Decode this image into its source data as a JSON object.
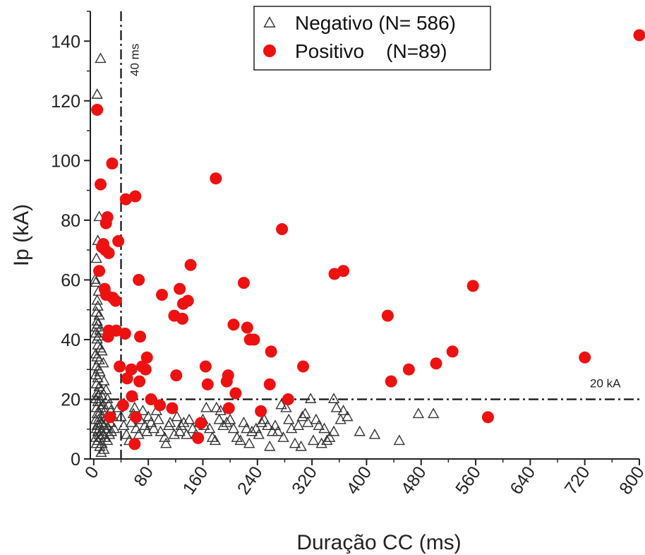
{
  "chart_data": {
    "type": "scatter",
    "xlabel": "Duração CC (ms)",
    "ylabel": "Ip (kA)",
    "xlim": [
      -5,
      800
    ],
    "ylim": [
      0,
      150
    ],
    "xticks": [
      0,
      80,
      160,
      240,
      320,
      400,
      480,
      560,
      640,
      720,
      800
    ],
    "yticks": [
      0,
      20,
      40,
      60,
      80,
      100,
      120,
      140
    ],
    "legend_position": "top-center",
    "reference_lines": [
      {
        "orientation": "vertical",
        "value": 40,
        "label": "40 ms"
      },
      {
        "orientation": "horizontal",
        "value": 20,
        "label": "20 kA"
      }
    ],
    "series": [
      {
        "name": "Negativo",
        "legend_label": "Negativo (N= 586)",
        "marker": "open-triangle",
        "color": "#333333",
        "points": [
          [
            10,
            134
          ],
          [
            5,
            122
          ],
          [
            8,
            81
          ],
          [
            6,
            73
          ],
          [
            4,
            67
          ],
          [
            2,
            60
          ],
          [
            3,
            59
          ],
          [
            7,
            56
          ],
          [
            5,
            53
          ],
          [
            6,
            51
          ],
          [
            4,
            49
          ],
          [
            8,
            48
          ],
          [
            5,
            46
          ],
          [
            6,
            45
          ],
          [
            4,
            44
          ],
          [
            9,
            43
          ],
          [
            3,
            42
          ],
          [
            7,
            41
          ],
          [
            5,
            40
          ],
          [
            6,
            38
          ],
          [
            10,
            37
          ],
          [
            12,
            36
          ],
          [
            3,
            35
          ],
          [
            5,
            34
          ],
          [
            8,
            33
          ],
          [
            14,
            32
          ],
          [
            4,
            31
          ],
          [
            7,
            30
          ],
          [
            9,
            29
          ],
          [
            3,
            28
          ],
          [
            6,
            27
          ],
          [
            15,
            26
          ],
          [
            4,
            25
          ],
          [
            8,
            24
          ],
          [
            11,
            23
          ],
          [
            18,
            23
          ],
          [
            5,
            22
          ],
          [
            7,
            21
          ],
          [
            12,
            21
          ],
          [
            20,
            20
          ],
          [
            3,
            20
          ],
          [
            6,
            19
          ],
          [
            9,
            19
          ],
          [
            14,
            18
          ],
          [
            22,
            18
          ],
          [
            4,
            17
          ],
          [
            10,
            17
          ],
          [
            16,
            16
          ],
          [
            25,
            16
          ],
          [
            5,
            15
          ],
          [
            8,
            15
          ],
          [
            13,
            14
          ],
          [
            19,
            14
          ],
          [
            28,
            14
          ],
          [
            3,
            13
          ],
          [
            7,
            13
          ],
          [
            11,
            12
          ],
          [
            17,
            12
          ],
          [
            24,
            12
          ],
          [
            5,
            11
          ],
          [
            9,
            11
          ],
          [
            15,
            11
          ],
          [
            21,
            10
          ],
          [
            30,
            10
          ],
          [
            4,
            10
          ],
          [
            6,
            9
          ],
          [
            12,
            9
          ],
          [
            18,
            9
          ],
          [
            26,
            9
          ],
          [
            8,
            8
          ],
          [
            14,
            8
          ],
          [
            23,
            8
          ],
          [
            3,
            7
          ],
          [
            10,
            7
          ],
          [
            16,
            7
          ],
          [
            20,
            6
          ],
          [
            6,
            6
          ],
          [
            12,
            5
          ],
          [
            4,
            5
          ],
          [
            9,
            4
          ],
          [
            15,
            3
          ],
          [
            11,
            2
          ],
          [
            36,
            17
          ],
          [
            40,
            14
          ],
          [
            44,
            11
          ],
          [
            48,
            8
          ],
          [
            52,
            6
          ],
          [
            55,
            12
          ],
          [
            58,
            15
          ],
          [
            60,
            17
          ],
          [
            62,
            10
          ],
          [
            66,
            8
          ],
          [
            68,
            13
          ],
          [
            72,
            16
          ],
          [
            75,
            11
          ],
          [
            78,
            9
          ],
          [
            80,
            14
          ],
          [
            84,
            12
          ],
          [
            88,
            10
          ],
          [
            92,
            16
          ],
          [
            95,
            13
          ],
          [
            98,
            9
          ],
          [
            104,
            7
          ],
          [
            106,
            5
          ],
          [
            110,
            11
          ],
          [
            112,
            12
          ],
          [
            118,
            8
          ],
          [
            122,
            14
          ],
          [
            126,
            9
          ],
          [
            128,
            11
          ],
          [
            132,
            12
          ],
          [
            136,
            8
          ],
          [
            140,
            13
          ],
          [
            145,
            10
          ],
          [
            150,
            8
          ],
          [
            155,
            12
          ],
          [
            160,
            13
          ],
          [
            162,
            11
          ],
          [
            165,
            17
          ],
          [
            170,
            10
          ],
          [
            174,
            7
          ],
          [
            178,
            6
          ],
          [
            180,
            17
          ],
          [
            184,
            13
          ],
          [
            186,
            16
          ],
          [
            190,
            11
          ],
          [
            195,
            12
          ],
          [
            200,
            13
          ],
          [
            205,
            10
          ],
          [
            210,
            7
          ],
          [
            215,
            6
          ],
          [
            220,
            12
          ],
          [
            224,
            10
          ],
          [
            228,
            5
          ],
          [
            232,
            9
          ],
          [
            238,
            10
          ],
          [
            242,
            8
          ],
          [
            246,
            12
          ],
          [
            250,
            13
          ],
          [
            255,
            11
          ],
          [
            258,
            4
          ],
          [
            262,
            9
          ],
          [
            266,
            11
          ],
          [
            270,
            9
          ],
          [
            275,
            18
          ],
          [
            278,
            7
          ],
          [
            282,
            17
          ],
          [
            286,
            13
          ],
          [
            290,
            10
          ],
          [
            295,
            5
          ],
          [
            300,
            11
          ],
          [
            304,
            4
          ],
          [
            306,
            14
          ],
          [
            310,
            15
          ],
          [
            314,
            12
          ],
          [
            318,
            20
          ],
          [
            322,
            6
          ],
          [
            326,
            13
          ],
          [
            330,
            11
          ],
          [
            334,
            5
          ],
          [
            338,
            10
          ],
          [
            342,
            6
          ],
          [
            346,
            7
          ],
          [
            352,
            9
          ],
          [
            352,
            20
          ],
          [
            356,
            17
          ],
          [
            362,
            13
          ],
          [
            366,
            16
          ],
          [
            372,
            14
          ],
          [
            390,
            9
          ],
          [
            412,
            8
          ],
          [
            448,
            6
          ],
          [
            476,
            15
          ],
          [
            498,
            15
          ]
        ]
      },
      {
        "name": "Positivo",
        "legend_label": "Positivo    (N=89)",
        "marker": "filled-circle",
        "color": "#ee1111",
        "points": [
          [
            5,
            117
          ],
          [
            8,
            63
          ],
          [
            10,
            92
          ],
          [
            12,
            71
          ],
          [
            14,
            72
          ],
          [
            16,
            57
          ],
          [
            17,
            70
          ],
          [
            18,
            55
          ],
          [
            18,
            79
          ],
          [
            20,
            81
          ],
          [
            21,
            41
          ],
          [
            22,
            43
          ],
          [
            22,
            69
          ],
          [
            24,
            14
          ],
          [
            27,
            99
          ],
          [
            28,
            54
          ],
          [
            32,
            53
          ],
          [
            33,
            43
          ],
          [
            36,
            73
          ],
          [
            38,
            31
          ],
          [
            43,
            18
          ],
          [
            46,
            42
          ],
          [
            47,
            87
          ],
          [
            49,
            27
          ],
          [
            55,
            30
          ],
          [
            56,
            21
          ],
          [
            60,
            5
          ],
          [
            61,
            88
          ],
          [
            62,
            14
          ],
          [
            66,
            60
          ],
          [
            67,
            26
          ],
          [
            68,
            41
          ],
          [
            71,
            31
          ],
          [
            76,
            30
          ],
          [
            78,
            34
          ],
          [
            84,
            20
          ],
          [
            97,
            18
          ],
          [
            100,
            55
          ],
          [
            115,
            17
          ],
          [
            118,
            48
          ],
          [
            121,
            28
          ],
          [
            126,
            57
          ],
          [
            130,
            47
          ],
          [
            131,
            52
          ],
          [
            138,
            53
          ],
          [
            142,
            65
          ],
          [
            153,
            7
          ],
          [
            157,
            12
          ],
          [
            164,
            31
          ],
          [
            167,
            25
          ],
          [
            179,
            94
          ],
          [
            195,
            26
          ],
          [
            197,
            28
          ],
          [
            198,
            17
          ],
          [
            205,
            45
          ],
          [
            208,
            22
          ],
          [
            220,
            59
          ],
          [
            225,
            44
          ],
          [
            229,
            40
          ],
          [
            235,
            40
          ],
          [
            245,
            16
          ],
          [
            258,
            25
          ],
          [
            260,
            36
          ],
          [
            276,
            77
          ],
          [
            285,
            20
          ],
          [
            307,
            31
          ],
          [
            353,
            62
          ],
          [
            366,
            63
          ],
          [
            431,
            48
          ],
          [
            436,
            26
          ],
          [
            462,
            30
          ],
          [
            502,
            32
          ],
          [
            526,
            36
          ],
          [
            556,
            58
          ],
          [
            578,
            14
          ],
          [
            720,
            34
          ],
          [
            800,
            142
          ]
        ]
      }
    ]
  }
}
